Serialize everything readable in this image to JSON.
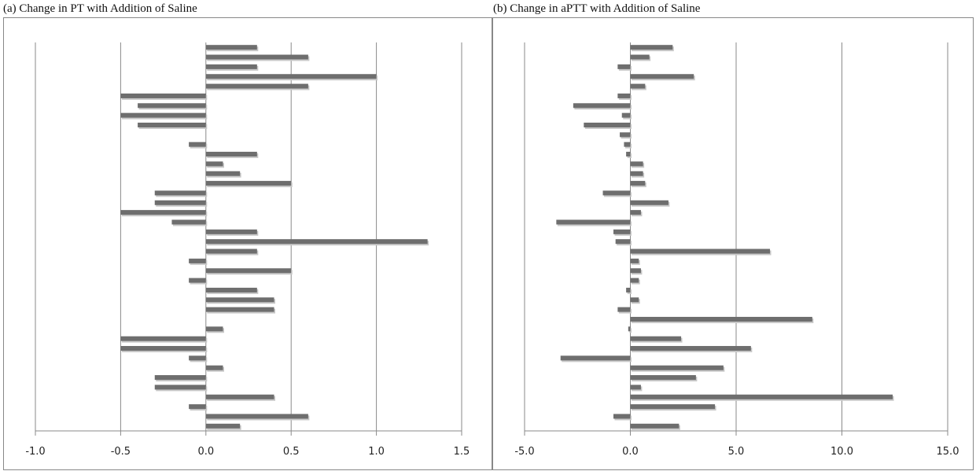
{
  "chart_data": [
    {
      "type": "barh",
      "title": "(a) Change in PT with Addition of Saline",
      "color": "#6e6e6e",
      "grid": true,
      "values": [
        0.3,
        0.6,
        0.3,
        1.0,
        0.6,
        -0.5,
        -0.4,
        -0.5,
        -0.4,
        0,
        -0.1,
        0.3,
        0.1,
        0.2,
        0.5,
        -0.3,
        -0.3,
        -0.5,
        -0.2,
        0.3,
        1.3,
        0.3,
        -0.1,
        0.5,
        -0.1,
        0.3,
        0.4,
        0.4,
        0,
        0.1,
        -0.5,
        -0.5,
        -0.1,
        0.1,
        -0.3,
        -0.3,
        0.4,
        -0.1,
        0.6,
        0.2
      ],
      "xlim": [
        -1.0,
        1.5
      ],
      "xticks": [
        {
          "value": -1.0,
          "label": "-1.0"
        },
        {
          "value": -0.5,
          "label": "-0.5"
        },
        {
          "value": 0,
          "label": "0.0"
        },
        {
          "value": 0.5,
          "label": "0.5"
        },
        {
          "value": 1.0,
          "label": "1.0"
        },
        {
          "value": 1.5,
          "label": "1.5"
        }
      ]
    },
    {
      "type": "barh",
      "title": "(b) Change in aPTT with Addition of Saline",
      "color": "#6e6e6e",
      "grid": true,
      "values": [
        2.0,
        0.9,
        -0.6,
        3.0,
        0.7,
        -0.6,
        -2.7,
        -0.4,
        -2.2,
        -0.5,
        -0.3,
        -0.2,
        0.6,
        0.6,
        0.7,
        -1.3,
        1.8,
        0.5,
        -3.5,
        -0.8,
        -0.7,
        6.6,
        0.4,
        0.5,
        0.4,
        -0.2,
        0.4,
        -0.6,
        8.6,
        -0.1,
        2.4,
        5.7,
        -3.3,
        4.4,
        3.1,
        0.5,
        12.4,
        4.0,
        -0.8,
        2.3
      ],
      "xlim": [
        -5.0,
        15.0
      ],
      "xticks": [
        {
          "value": -5.0,
          "label": "-5.0"
        },
        {
          "value": 0,
          "label": "0.0"
        },
        {
          "value": 5.0,
          "label": "5.0"
        },
        {
          "value": 10.0,
          "label": "10.0"
        },
        {
          "value": 15.0,
          "label": "15.0"
        }
      ]
    }
  ]
}
